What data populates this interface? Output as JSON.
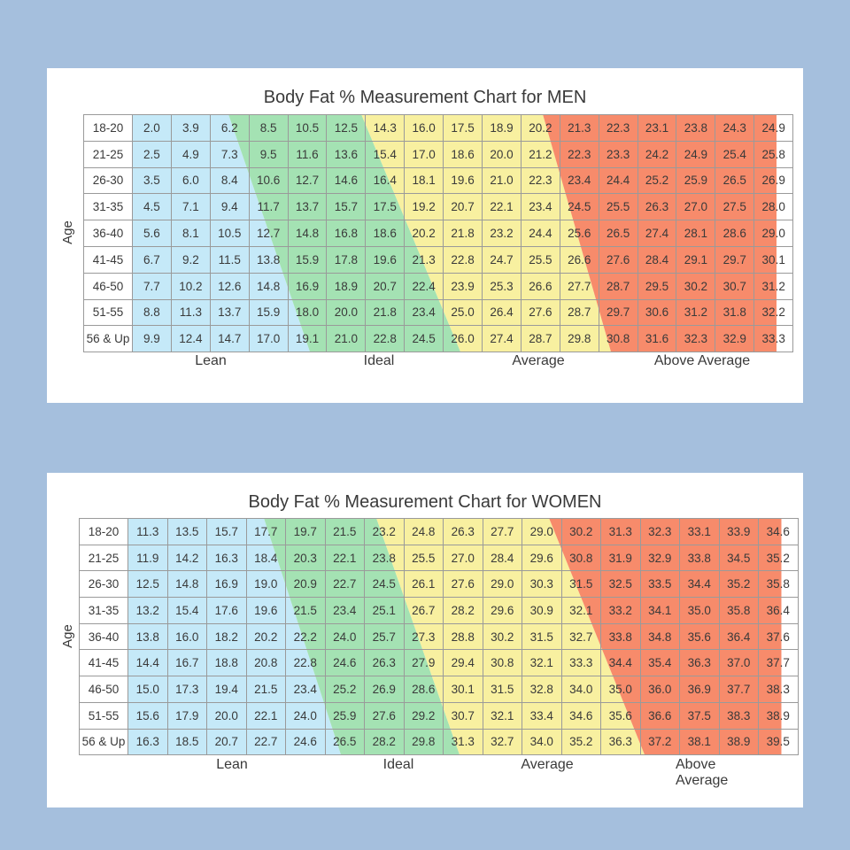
{
  "colors": {
    "lean": "#c5e9f8",
    "ideal": "#a4e2b3",
    "average": "#f8f0a0",
    "above_average": "#f78b6b",
    "background": "#a5bfdd"
  },
  "chart_data": [
    {
      "type": "table",
      "title": "Body Fat % Measurement Chart for  MEN",
      "ylabel": "Age",
      "zones": [
        "Lean",
        "Ideal",
        "Average",
        "Above Average"
      ],
      "rows": [
        "18-20",
        "21-25",
        "26-30",
        "31-35",
        "36-40",
        "41-45",
        "46-50",
        "51-55",
        "56 & Up"
      ],
      "values": [
        [
          "2.0",
          "3.9",
          "6.2",
          "8.5",
          "10.5",
          "12.5",
          "14.3",
          "16.0",
          "17.5",
          "18.9",
          "20.2",
          "21.3",
          "22.3",
          "23.1",
          "23.8",
          "24.3",
          "24.9"
        ],
        [
          "2.5",
          "4.9",
          "7.3",
          "9.5",
          "11.6",
          "13.6",
          "15.4",
          "17.0",
          "18.6",
          "20.0",
          "21.2",
          "22.3",
          "23.3",
          "24.2",
          "24.9",
          "25.4",
          "25.8"
        ],
        [
          "3.5",
          "6.0",
          "8.4",
          "10.6",
          "12.7",
          "14.6",
          "16.4",
          "18.1",
          "19.6",
          "21.0",
          "22.3",
          "23.4",
          "24.4",
          "25.2",
          "25.9",
          "26.5",
          "26.9"
        ],
        [
          "4.5",
          "7.1",
          "9.4",
          "11.7",
          "13.7",
          "15.7",
          "17.5",
          "19.2",
          "20.7",
          "22.1",
          "23.4",
          "24.5",
          "25.5",
          "26.3",
          "27.0",
          "27.5",
          "28.0"
        ],
        [
          "5.6",
          "8.1",
          "10.5",
          "12.7",
          "14.8",
          "16.8",
          "18.6",
          "20.2",
          "21.8",
          "23.2",
          "24.4",
          "25.6",
          "26.5",
          "27.4",
          "28.1",
          "28.6",
          "29.0"
        ],
        [
          "6.7",
          "9.2",
          "11.5",
          "13.8",
          "15.9",
          "17.8",
          "19.6",
          "21.3",
          "22.8",
          "24.7",
          "25.5",
          "26.6",
          "27.6",
          "28.4",
          "29.1",
          "29.7",
          "30.1"
        ],
        [
          "7.7",
          "10.2",
          "12.6",
          "14.8",
          "16.9",
          "18.9",
          "20.7",
          "22.4",
          "23.9",
          "25.3",
          "26.6",
          "27.7",
          "28.7",
          "29.5",
          "30.2",
          "30.7",
          "31.2"
        ],
        [
          "8.8",
          "11.3",
          "13.7",
          "15.9",
          "18.0",
          "20.0",
          "21.8",
          "23.4",
          "25.0",
          "26.4",
          "27.6",
          "28.7",
          "29.7",
          "30.6",
          "31.2",
          "31.8",
          "32.2"
        ],
        [
          "9.9",
          "12.4",
          "14.7",
          "17.0",
          "19.1",
          "21.0",
          "22.8",
          "24.5",
          "26.0",
          "27.4",
          "28.7",
          "29.8",
          "30.8",
          "31.6",
          "32.3",
          "32.9",
          "33.3"
        ]
      ]
    },
    {
      "type": "table",
      "title": "Body Fat % Measurement Chart for  WOMEN",
      "ylabel": "Age",
      "zones": [
        "Lean",
        "Ideal",
        "Average",
        "Above Average"
      ],
      "rows": [
        "18-20",
        "21-25",
        "26-30",
        "31-35",
        "36-40",
        "41-45",
        "46-50",
        "51-55",
        "56 & Up"
      ],
      "values": [
        [
          "11.3",
          "13.5",
          "15.7",
          "17.7",
          "19.7",
          "21.5",
          "23.2",
          "24.8",
          "26.3",
          "27.7",
          "29.0",
          "30.2",
          "31.3",
          "32.3",
          "33.1",
          "33.9",
          "34.6"
        ],
        [
          "11.9",
          "14.2",
          "16.3",
          "18.4",
          "20.3",
          "22.1",
          "23.8",
          "25.5",
          "27.0",
          "28.4",
          "29.6",
          "30.8",
          "31.9",
          "32.9",
          "33.8",
          "34.5",
          "35.2"
        ],
        [
          "12.5",
          "14.8",
          "16.9",
          "19.0",
          "20.9",
          "22.7",
          "24.5",
          "26.1",
          "27.6",
          "29.0",
          "30.3",
          "31.5",
          "32.5",
          "33.5",
          "34.4",
          "35.2",
          "35.8"
        ],
        [
          "13.2",
          "15.4",
          "17.6",
          "19.6",
          "21.5",
          "23.4",
          "25.1",
          "26.7",
          "28.2",
          "29.6",
          "30.9",
          "32.1",
          "33.2",
          "34.1",
          "35.0",
          "35.8",
          "36.4"
        ],
        [
          "13.8",
          "16.0",
          "18.2",
          "20.2",
          "22.2",
          "24.0",
          "25.7",
          "27.3",
          "28.8",
          "30.2",
          "31.5",
          "32.7",
          "33.8",
          "34.8",
          "35.6",
          "36.4",
          "37.6"
        ],
        [
          "14.4",
          "16.7",
          "18.8",
          "20.8",
          "22.8",
          "24.6",
          "26.3",
          "27.9",
          "29.4",
          "30.8",
          "32.1",
          "33.3",
          "34.4",
          "35.4",
          "36.3",
          "37.0",
          "37.7"
        ],
        [
          "15.0",
          "17.3",
          "19.4",
          "21.5",
          "23.4",
          "25.2",
          "26.9",
          "28.6",
          "30.1",
          "31.5",
          "32.8",
          "34.0",
          "35.0",
          "36.0",
          "36.9",
          "37.7",
          "38.3"
        ],
        [
          "15.6",
          "17.9",
          "20.0",
          "22.1",
          "24.0",
          "25.9",
          "27.6",
          "29.2",
          "30.7",
          "32.1",
          "33.4",
          "34.6",
          "35.6",
          "36.6",
          "37.5",
          "38.3",
          "38.9"
        ],
        [
          "16.3",
          "18.5",
          "20.7",
          "22.7",
          "24.6",
          "26.5",
          "28.2",
          "29.8",
          "31.3",
          "32.7",
          "34.0",
          "35.2",
          "36.3",
          "37.2",
          "38.1",
          "38.9",
          "39.5"
        ]
      ]
    }
  ]
}
